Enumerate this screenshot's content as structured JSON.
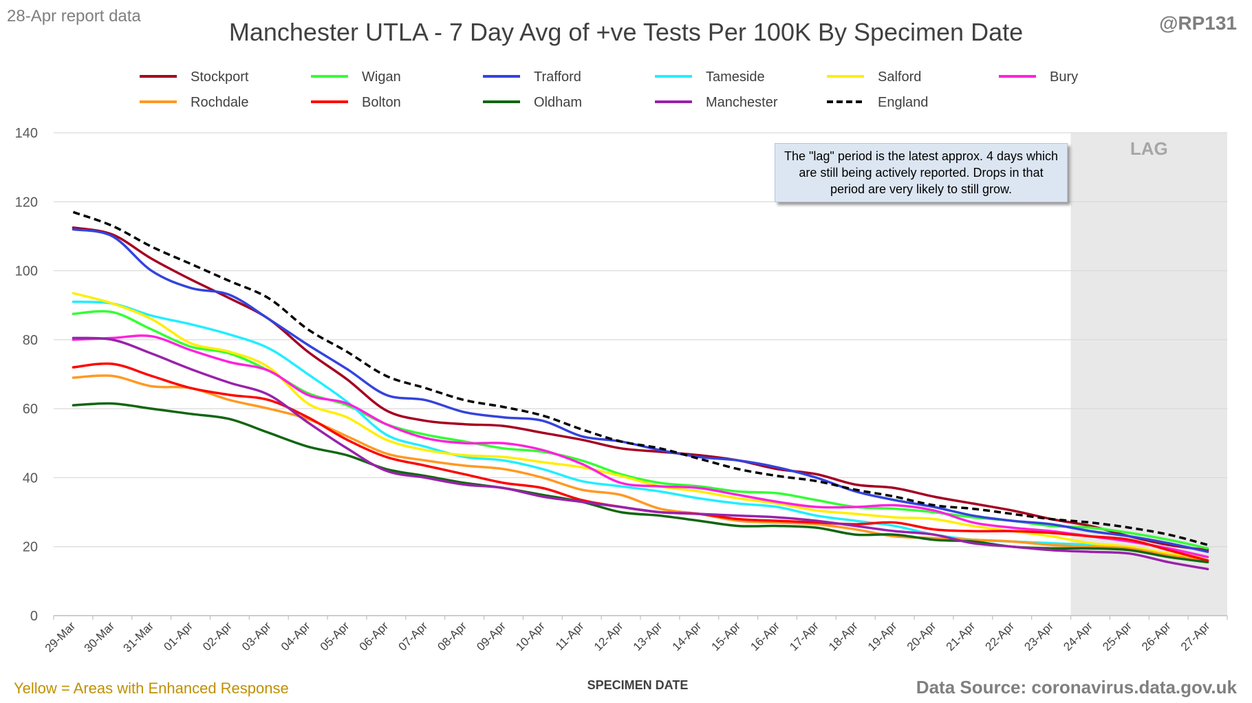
{
  "header": {
    "report_label": "28-Apr report data",
    "title": "Manchester UTLA - 7 Day Avg of +ve Tests Per 100K By Specimen Date",
    "handle": "@RP131"
  },
  "annotation": {
    "text": "The \"lag\" period is the latest approx. 4 days which are still being actively reported. Drops in that period are very likely to still grow."
  },
  "footer": {
    "note": "Yellow = Areas with Enhanced Response",
    "source": "Data Source: coronavirus.data.gov.uk"
  },
  "chart_data": {
    "type": "line",
    "xlabel": "SPECIMEN DATE",
    "ylabel": "",
    "ylim": [
      0,
      140
    ],
    "yticks": [
      0,
      20,
      40,
      60,
      80,
      100,
      120,
      140
    ],
    "grid": true,
    "legend_position": "top",
    "lag_label": "LAG",
    "lag_start": "24-Apr",
    "categories": [
      "29-Mar",
      "30-Mar",
      "31-Mar",
      "01-Apr",
      "02-Apr",
      "03-Apr",
      "04-Apr",
      "05-Apr",
      "06-Apr",
      "07-Apr",
      "08-Apr",
      "09-Apr",
      "10-Apr",
      "11-Apr",
      "12-Apr",
      "13-Apr",
      "14-Apr",
      "15-Apr",
      "16-Apr",
      "17-Apr",
      "18-Apr",
      "19-Apr",
      "20-Apr",
      "21-Apr",
      "22-Apr",
      "23-Apr",
      "24-Apr",
      "25-Apr",
      "26-Apr",
      "27-Apr"
    ],
    "series": [
      {
        "name": "Stockport",
        "color": "#a50021",
        "dash": false,
        "values": [
          112.5,
          110.5,
          103.5,
          97.5,
          92,
          86,
          76.5,
          68.5,
          59.5,
          56.5,
          55.5,
          55,
          53,
          51,
          48.5,
          47.5,
          46.5,
          45,
          42.5,
          41,
          38,
          37,
          34.5,
          32.5,
          30.5,
          28,
          26,
          23,
          20.5,
          19
        ]
      },
      {
        "name": "Wigan",
        "color": "#33ff33",
        "dash": false,
        "values": [
          87.5,
          88,
          83,
          78,
          76,
          71,
          64.5,
          61,
          55.5,
          52.5,
          50.5,
          48.5,
          47.5,
          45,
          41,
          38.5,
          37.5,
          36,
          35.5,
          33.5,
          31.5,
          31,
          30,
          28.5,
          27.5,
          26,
          25.5,
          24,
          22,
          19.5
        ]
      },
      {
        "name": "Trafford",
        "color": "#3344dd",
        "dash": false,
        "values": [
          112,
          110,
          100,
          95,
          93,
          86,
          78.5,
          71.5,
          64,
          62.5,
          59,
          57.5,
          56.5,
          52,
          50.5,
          48,
          46,
          45,
          43,
          40,
          36,
          33.5,
          31.5,
          29,
          27.5,
          26.5,
          24.5,
          23,
          21,
          18.5
        ]
      },
      {
        "name": "Tameside",
        "color": "#22eeff",
        "dash": false,
        "values": [
          91,
          90.5,
          87,
          84.5,
          81.5,
          77.5,
          70,
          62,
          52.5,
          49,
          46,
          45,
          42.5,
          39,
          37.5,
          36,
          34,
          32.5,
          31.5,
          29,
          27.5,
          26,
          23.5,
          22,
          21.5,
          21,
          20.5,
          19.5,
          17.5,
          16
        ]
      },
      {
        "name": "Salford",
        "color": "#ffee00",
        "dash": false,
        "values": [
          93.5,
          90.5,
          86,
          79,
          76.5,
          72,
          61.5,
          57.5,
          51,
          48,
          46.5,
          46,
          44.5,
          43,
          40.5,
          37.5,
          36,
          34,
          32.5,
          30.5,
          29.5,
          28.5,
          28,
          26,
          24.5,
          23,
          21,
          20,
          18,
          17
        ]
      },
      {
        "name": "Bury",
        "color": "#ff22dd",
        "dash": false,
        "values": [
          80,
          80.5,
          81,
          77,
          73.5,
          71,
          64,
          61.5,
          55.5,
          51.5,
          50,
          50,
          48,
          44,
          38.5,
          37.5,
          37,
          35,
          33,
          31.5,
          31.5,
          32,
          30.5,
          27,
          25.5,
          24.5,
          23,
          21.5,
          19.5,
          17
        ]
      },
      {
        "name": "Rochdale",
        "color": "#ff9922",
        "dash": false,
        "values": [
          69,
          69.5,
          66.5,
          66,
          62.5,
          60,
          57,
          52,
          47,
          45,
          43.5,
          42.5,
          40,
          36.5,
          35,
          31,
          29.5,
          27.5,
          27,
          26.5,
          25,
          23,
          22.5,
          22,
          21.5,
          20.5,
          20,
          19.5,
          17.5,
          16
        ]
      },
      {
        "name": "Bolton",
        "color": "#ff0000",
        "dash": false,
        "values": [
          72,
          73,
          69.5,
          66,
          64,
          62.5,
          57.5,
          51,
          46,
          43.5,
          41,
          38.5,
          37,
          33.5,
          31.5,
          30,
          29.5,
          28,
          27.5,
          27,
          26.5,
          27,
          25,
          24.5,
          24.5,
          24,
          23,
          22,
          19,
          16
        ]
      },
      {
        "name": "Oldham",
        "color": "#116611",
        "dash": false,
        "values": [
          61,
          61.5,
          60,
          58.5,
          57,
          53,
          49,
          46.5,
          42.5,
          40.5,
          38.5,
          37,
          35,
          33,
          30,
          29,
          27.5,
          26,
          26,
          25.5,
          23.5,
          23.5,
          22,
          21.5,
          20,
          19.5,
          19.5,
          19,
          17,
          15.5
        ]
      },
      {
        "name": "Manchester",
        "color": "#9922aa",
        "dash": false,
        "values": [
          80.5,
          80,
          76,
          71.5,
          67.5,
          64,
          56,
          48.5,
          42,
          40,
          38,
          37,
          34.5,
          33,
          31.5,
          30,
          29.5,
          29,
          28.5,
          27.5,
          26,
          24.5,
          23.5,
          21,
          20,
          19,
          18.5,
          18,
          15.5,
          13.5
        ]
      },
      {
        "name": "England",
        "color": "#000000",
        "dash": true,
        "values": [
          117,
          113,
          107,
          102,
          97,
          92,
          83,
          76.5,
          69.5,
          66,
          62.5,
          60.5,
          58,
          54,
          50.5,
          48.5,
          45.5,
          42.5,
          40.5,
          39,
          36.5,
          34.5,
          32,
          31,
          29.5,
          28,
          27,
          25.5,
          23.5,
          20.5
        ]
      }
    ]
  }
}
